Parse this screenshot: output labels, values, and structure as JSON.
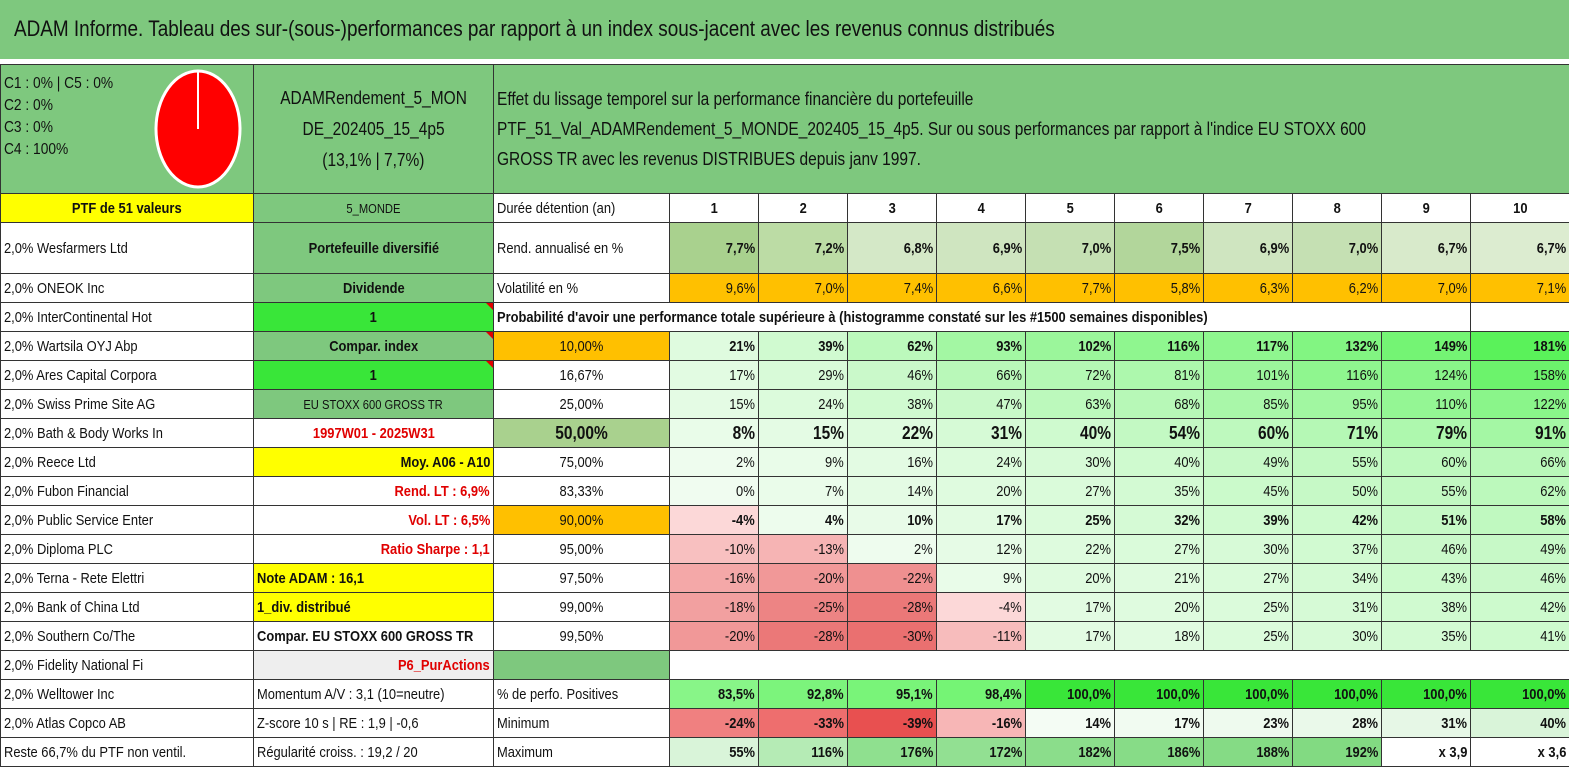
{
  "title": "ADAM Informe. Tableau des sur-(sous-)performances par rapport à un index sous-jacent avec les revenus connus distribués",
  "pie": {
    "lines": [
      "C1 : 0% | C5 : 0%",
      "C2 : 0%",
      "C3 : 0%",
      "C4 : 100%"
    ],
    "fill_color": "#ff0000"
  },
  "fund": {
    "name_line1": "ADAMRendement_5_MON",
    "name_line2": "DE_202405_15_4p5",
    "perf": "(13,1% | 7,7%)"
  },
  "description": [
    "Effet du lissage temporel sur la performance financière du portefeuille",
    "PTF_51_Val_ADAMRendement_5_MONDE_202405_15_4p5. Sur ou sous performances par rapport à l'indice EU STOXX 600",
    "GROSS TR avec les revenus DISTRIBUES depuis janv 1997."
  ],
  "holdings_header": "PTF de 51 valeurs",
  "holdings": [
    "2,0% Wesfarmers Ltd",
    "2,0% ONEOK Inc",
    "2,0% InterContinental Hot",
    "2,0% Wartsila OYJ Abp",
    "2,0% Ares Capital Corpora",
    "2,0% Swiss Prime Site AG",
    "2,0% Bath & Body Works In",
    "2,0% Reece Ltd",
    "2,0% Fubon Financial",
    "2,0% Public Service Enter",
    "2,0% Diploma PLC",
    "2,0% Terna - Rete Elettri",
    "2,0% Bank of China Ltd",
    "2,0% Southern Co/The",
    "2,0% Fidelity National Fi",
    "2,0% Welltower Inc",
    "2,0% Atlas Copco AB",
    "Reste 66,7% du PTF non ventil."
  ],
  "info_column": [
    "5_MONDE",
    "Portefeuille diversifié",
    "Dividende",
    "1",
    "Compar. index",
    "1",
    "EU STOXX 600 GROSS TR",
    "1997W01 - 2025W31",
    "Moy. A06 - A10",
    "Rend. LT : 6,9%",
    "Vol. LT : 6,5%",
    "Ratio Sharpe : 1,1",
    "Note ADAM : 16,1",
    "1_div. distribué",
    "Compar. EU STOXX 600 GROSS TR",
    "P6_PurActions",
    "Momentum A/V : 3,1 (10=neutre)",
    "Z-score 10 s | RE : 1,9 | -0,6",
    "Régularité croiss. : 19,2 / 20"
  ],
  "table": {
    "duration_label": "Durée détention (an)",
    "years": [
      "1",
      "2",
      "3",
      "4",
      "5",
      "6",
      "7",
      "8",
      "9",
      "10"
    ],
    "return_label": "Rend. annualisé en %",
    "returns": [
      "7,7%",
      "7,2%",
      "6,8%",
      "6,9%",
      "7,0%",
      "7,5%",
      "6,9%",
      "7,0%",
      "6,7%",
      "6,7%"
    ],
    "vol_label": "Volatilité en %",
    "vols": [
      "9,6%",
      "7,0%",
      "7,4%",
      "6,6%",
      "7,7%",
      "5,8%",
      "6,3%",
      "6,2%",
      "7,0%",
      "7,1%"
    ],
    "prob_header": "Probabilité d'avoir une performance totale supérieure à (histogramme constaté sur les #1500 semaines disponibles)",
    "quantiles": [
      "10,00%",
      "16,67%",
      "25,00%",
      "50,00%",
      "75,00%",
      "83,33%",
      "90,00%",
      "95,00%",
      "97,50%",
      "99,00%",
      "99,50%"
    ],
    "quantile_rows": [
      [
        "21%",
        "39%",
        "62%",
        "93%",
        "102%",
        "116%",
        "117%",
        "132%",
        "149%",
        "181%"
      ],
      [
        "17%",
        "29%",
        "46%",
        "66%",
        "72%",
        "81%",
        "101%",
        "116%",
        "124%",
        "158%"
      ],
      [
        "15%",
        "24%",
        "38%",
        "47%",
        "63%",
        "68%",
        "85%",
        "95%",
        "110%",
        "122%"
      ],
      [
        "8%",
        "15%",
        "22%",
        "31%",
        "40%",
        "54%",
        "60%",
        "71%",
        "79%",
        "91%"
      ],
      [
        "2%",
        "9%",
        "16%",
        "24%",
        "30%",
        "40%",
        "49%",
        "55%",
        "60%",
        "66%"
      ],
      [
        "0%",
        "7%",
        "14%",
        "20%",
        "27%",
        "35%",
        "45%",
        "50%",
        "55%",
        "62%"
      ],
      [
        "-4%",
        "4%",
        "10%",
        "17%",
        "25%",
        "32%",
        "39%",
        "42%",
        "51%",
        "58%"
      ],
      [
        "-10%",
        "-13%",
        "2%",
        "12%",
        "22%",
        "27%",
        "30%",
        "37%",
        "46%",
        "49%"
      ],
      [
        "-16%",
        "-20%",
        "-22%",
        "9%",
        "20%",
        "21%",
        "27%",
        "34%",
        "43%",
        "46%"
      ],
      [
        "-18%",
        "-25%",
        "-28%",
        "-4%",
        "17%",
        "20%",
        "25%",
        "31%",
        "38%",
        "42%"
      ],
      [
        "-20%",
        "-28%",
        "-30%",
        "-11%",
        "17%",
        "18%",
        "25%",
        "30%",
        "35%",
        "41%"
      ]
    ],
    "positive_label": "% de perfo. Positives",
    "positives": [
      "83,5%",
      "92,8%",
      "95,1%",
      "98,4%",
      "100,0%",
      "100,0%",
      "100,0%",
      "100,0%",
      "100,0%",
      "100,0%"
    ],
    "min_label": "Minimum",
    "minimums": [
      "-24%",
      "-33%",
      "-39%",
      "-16%",
      "14%",
      "17%",
      "23%",
      "28%",
      "31%",
      "40%"
    ],
    "max_label": "Maximum",
    "maximums": [
      "55%",
      "116%",
      "176%",
      "172%",
      "182%",
      "186%",
      "188%",
      "192%",
      "x 3,9",
      "x 3,6"
    ]
  }
}
